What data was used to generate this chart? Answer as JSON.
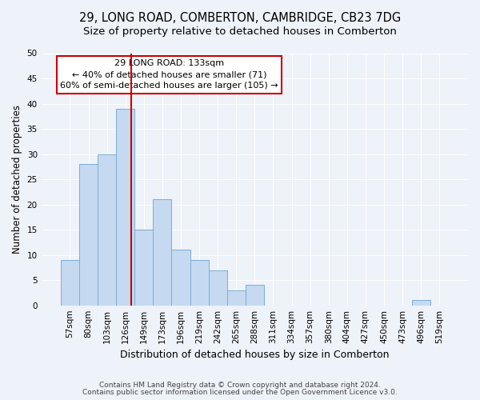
{
  "title1": "29, LONG ROAD, COMBERTON, CAMBRIDGE, CB23 7DG",
  "title2": "Size of property relative to detached houses in Comberton",
  "xlabel": "Distribution of detached houses by size in Comberton",
  "ylabel": "Number of detached properties",
  "bin_labels": [
    "57sqm",
    "80sqm",
    "103sqm",
    "126sqm",
    "149sqm",
    "173sqm",
    "196sqm",
    "219sqm",
    "242sqm",
    "265sqm",
    "288sqm",
    "311sqm",
    "334sqm",
    "357sqm",
    "380sqm",
    "404sqm",
    "427sqm",
    "450sqm",
    "473sqm",
    "496sqm",
    "519sqm"
  ],
  "bar_values": [
    9,
    28,
    30,
    39,
    15,
    21,
    11,
    9,
    7,
    3,
    4,
    0,
    0,
    0,
    0,
    0,
    0,
    0,
    0,
    1,
    0
  ],
  "bar_color": "#c5d9f0",
  "bar_edge_color": "#7bafd4",
  "vline_color": "#cc0000",
  "annotation_title": "29 LONG ROAD: 133sqm",
  "annotation_line1": "← 40% of detached houses are smaller (71)",
  "annotation_line2": "60% of semi-detached houses are larger (105) →",
  "annotation_box_color": "#ffffff",
  "annotation_box_edge_color": "#cc0000",
  "ylim": [
    0,
    50
  ],
  "yticks": [
    0,
    5,
    10,
    15,
    20,
    25,
    30,
    35,
    40,
    45,
    50
  ],
  "footer1": "Contains HM Land Registry data © Crown copyright and database right 2024.",
  "footer2": "Contains public sector information licensed under the Open Government Licence v3.0.",
  "bg_color": "#eef2f9",
  "grid_color": "#ffffff",
  "title1_fontsize": 10.5,
  "title2_fontsize": 9.5,
  "xlabel_fontsize": 9,
  "ylabel_fontsize": 8.5,
  "tick_fontsize": 7.5,
  "annotation_fontsize": 8,
  "footer_fontsize": 6.5
}
